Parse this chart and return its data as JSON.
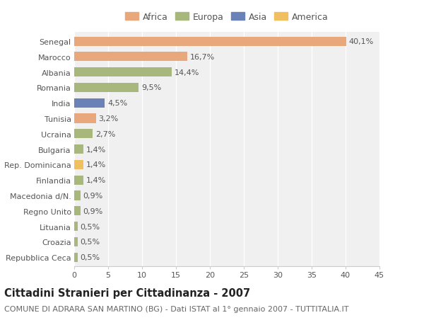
{
  "title": "Cittadini Stranieri per Cittadinanza - 2007",
  "subtitle": "COMUNE DI ADRARA SAN MARTINO (BG) - Dati ISTAT al 1° gennaio 2007 - TUTTITALIA.IT",
  "categories": [
    "Senegal",
    "Marocco",
    "Albania",
    "Romania",
    "India",
    "Tunisia",
    "Ucraina",
    "Bulgaria",
    "Rep. Dominicana",
    "Finlandia",
    "Macedonia d/N.",
    "Regno Unito",
    "Lituania",
    "Croazia",
    "Repubblica Ceca"
  ],
  "values": [
    40.1,
    16.7,
    14.4,
    9.5,
    4.5,
    3.2,
    2.7,
    1.4,
    1.4,
    1.4,
    0.9,
    0.9,
    0.5,
    0.5,
    0.5
  ],
  "labels": [
    "40,1%",
    "16,7%",
    "14,4%",
    "9,5%",
    "4,5%",
    "3,2%",
    "2,7%",
    "1,4%",
    "1,4%",
    "1,4%",
    "0,9%",
    "0,9%",
    "0,5%",
    "0,5%",
    "0,5%"
  ],
  "continents": [
    "Africa",
    "Africa",
    "Europa",
    "Europa",
    "Asia",
    "Africa",
    "Europa",
    "Europa",
    "America",
    "Europa",
    "Europa",
    "Europa",
    "Europa",
    "Europa",
    "Europa"
  ],
  "colors": {
    "Africa": "#E8A87C",
    "Europa": "#A8B87C",
    "Asia": "#6A82B8",
    "America": "#F0C060"
  },
  "legend_order": [
    "Africa",
    "Europa",
    "Asia",
    "America"
  ],
  "xlim": [
    0,
    45
  ],
  "xticks": [
    0,
    5,
    10,
    15,
    20,
    25,
    30,
    35,
    40,
    45
  ],
  "background_color": "#ffffff",
  "plot_background": "#f0f0f0",
  "grid_color": "#ffffff",
  "bar_height": 0.6,
  "title_fontsize": 10.5,
  "subtitle_fontsize": 8,
  "tick_fontsize": 8,
  "label_fontsize": 8,
  "legend_fontsize": 9
}
